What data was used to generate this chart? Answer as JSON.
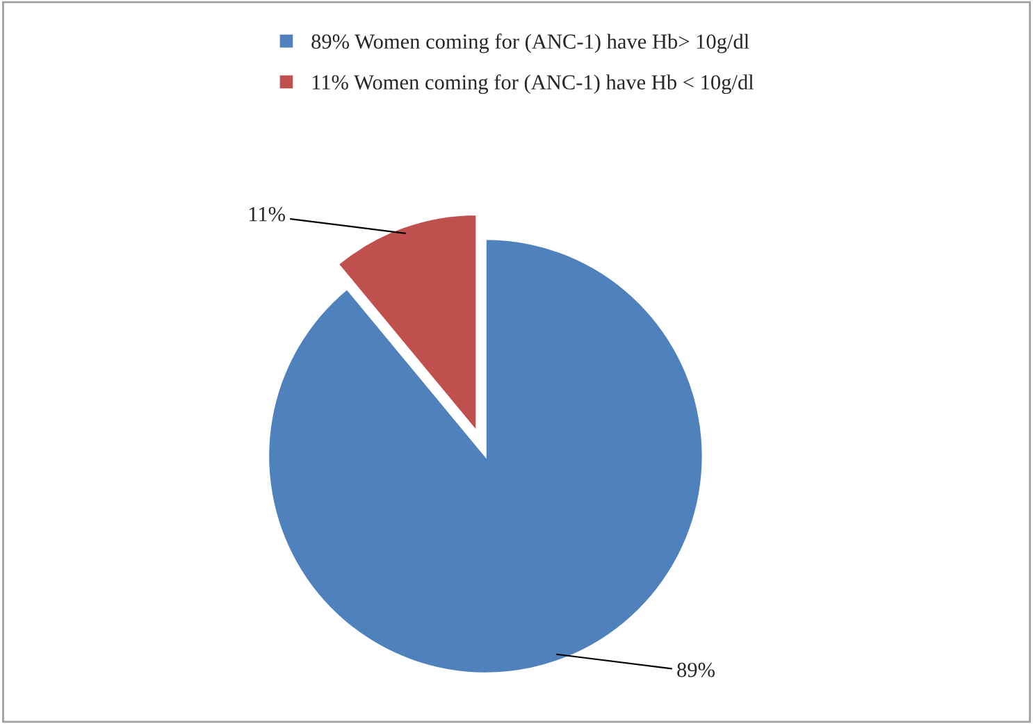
{
  "chart_data": {
    "type": "pie",
    "categories": [
      "89% Women coming for (ANC-1) have Hb> 10g/dl",
      "11% Women coming for (ANC-1) have Hb < 10g/dl"
    ],
    "values": [
      89,
      11
    ],
    "colors": [
      "#4f81bd",
      "#c0504d"
    ],
    "value_labels": [
      "89%",
      "11%"
    ],
    "legend": "top"
  }
}
